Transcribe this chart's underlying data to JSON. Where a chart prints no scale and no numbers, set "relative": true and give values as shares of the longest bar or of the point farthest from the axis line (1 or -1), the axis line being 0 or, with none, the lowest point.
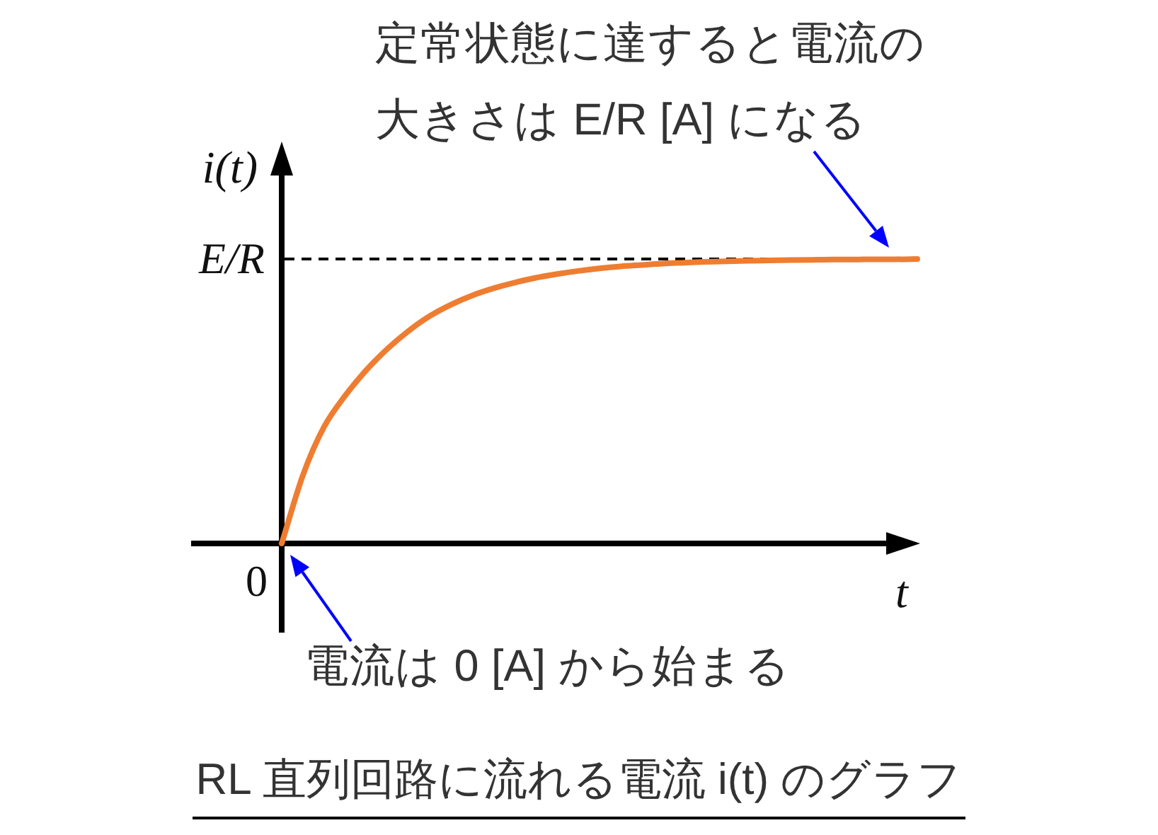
{
  "chart_data": {
    "type": "line",
    "title": "RL 直列回路に流れる電流 i(t) のグラフ",
    "xlabel": "t",
    "ylabel": "i(t)",
    "relative": true,
    "categories": [
      null,
      null,
      null,
      null,
      null,
      null,
      null,
      null,
      null,
      null,
      null,
      null,
      null,
      null,
      null,
      null,
      null,
      null,
      null,
      null,
      null,
      null,
      null,
      null,
      null,
      null,
      null,
      null,
      null,
      null,
      null
    ],
    "series": [
      {
        "color": "#ef7d31",
        "values": [
          0,
          0.24,
          0.41,
          0.52,
          0.61,
          0.685,
          0.748,
          0.8,
          0.84,
          0.872,
          0.897,
          0.917,
          0.934,
          0.947,
          0.958,
          0.967,
          0.974,
          0.979,
          0.984,
          0.987,
          0.99,
          0.992,
          0.994,
          0.995,
          0.996,
          0.997,
          0.998,
          0.998,
          0.999,
          0.999,
          1.0
        ]
      }
    ],
    "ref_lines": [
      {
        "axis": "y",
        "value": 1,
        "label": "E/R",
        "color": "#000000",
        "line_style": "dashed"
      }
    ],
    "annotations": [
      "0",
      {
        "text": "定常状態に達すると電流の大きさは E/R [A] になる",
        "y": 1
      },
      "電流は 0 [A] から始まる"
    ]
  }
}
